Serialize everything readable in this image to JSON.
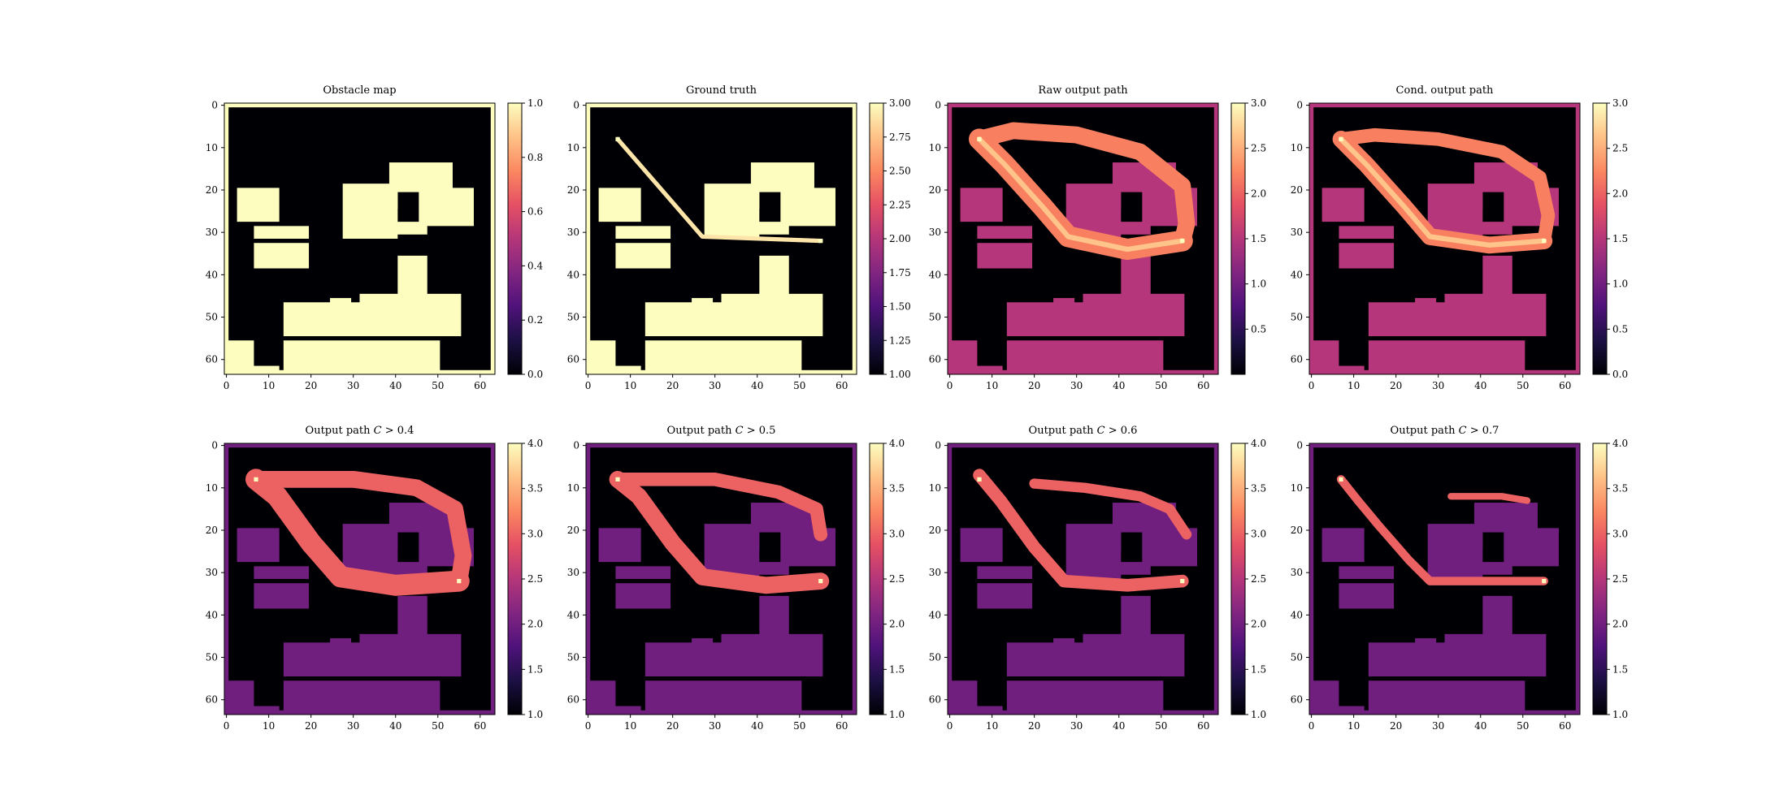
{
  "figure": {
    "colormap": "magma",
    "colors": {
      "background": "#ffffff",
      "obstacle_low": "#000004",
      "obstacle_high": "#fcfdbf",
      "box_level_3_of_3": "#b73779",
      "box_level_1p5_of_3": "#721f81",
      "path_highlight": "#f1605d",
      "path_peak": "#fec287"
    },
    "grid_size": 64,
    "shared_obstacle_layout_in_grid_cells": [
      {
        "x0": 3,
        "x1": 12,
        "y0": 20,
        "y1": 27
      },
      {
        "x0": 7,
        "x1": 19,
        "y0": 29,
        "y1": 31
      },
      {
        "x0": 7,
        "x1": 19,
        "y0": 33,
        "y1": 38
      },
      {
        "x0": 28,
        "x1": 40,
        "y0": 19,
        "y1": 31
      },
      {
        "x0": 39,
        "x1": 53,
        "y0": 14,
        "y1": 20
      },
      {
        "x0": 39,
        "x1": 40,
        "y0": 20,
        "y1": 24
      },
      {
        "x0": 46,
        "x1": 58,
        "y0": 20,
        "y1": 28
      },
      {
        "x0": 40,
        "x1": 47,
        "y0": 28,
        "y1": 30
      },
      {
        "x0": 41,
        "x1": 47,
        "y0": 36,
        "y1": 45
      },
      {
        "x0": 32,
        "x1": 55,
        "y0": 45,
        "y1": 54
      },
      {
        "x0": 14,
        "x1": 31,
        "y0": 47,
        "y1": 54
      },
      {
        "x0": 25,
        "x1": 29,
        "y0": 46,
        "y1": 47
      },
      {
        "x0": 0,
        "x1": 6,
        "y0": 56,
        "y1": 63
      },
      {
        "x0": 14,
        "x1": 31,
        "y0": 56,
        "y1": 63
      },
      {
        "x0": 32,
        "x1": 50,
        "y0": 56,
        "y1": 63
      },
      {
        "x0": 6,
        "x1": 12,
        "y0": 62,
        "y1": 63
      }
    ]
  },
  "chart_data": [
    {
      "type": "heatmap",
      "title": "Obstacle map",
      "xlim": [
        0,
        63
      ],
      "ylim": [
        0,
        63
      ],
      "xticks": [
        "0",
        "10",
        "20",
        "30",
        "40",
        "50",
        "60"
      ],
      "yticks": [
        "0",
        "10",
        "20",
        "30",
        "40",
        "50",
        "60"
      ],
      "colorbar": {
        "min": 0.0,
        "max": 1.0,
        "ticks": [
          "0.0",
          "0.2",
          "0.4",
          "0.6",
          "0.8",
          "1.0"
        ]
      },
      "obstacle_value": 1.0,
      "path": [],
      "start": null,
      "goal": null
    },
    {
      "type": "heatmap",
      "title": "Ground truth",
      "xlim": [
        0,
        63
      ],
      "ylim": [
        0,
        63
      ],
      "xticks": [
        "0",
        "10",
        "20",
        "30",
        "40",
        "50",
        "60"
      ],
      "yticks": [
        "0",
        "10",
        "20",
        "30",
        "40",
        "50",
        "60"
      ],
      "colorbar": {
        "min": 1.0,
        "max": 3.0,
        "ticks": [
          "1.00",
          "1.25",
          "1.50",
          "1.75",
          "2.00",
          "2.25",
          "2.50",
          "2.75",
          "3.00"
        ]
      },
      "obstacle_value": 3.0,
      "path": [
        [
          7,
          8
        ],
        [
          27,
          31
        ],
        [
          55,
          32
        ]
      ],
      "path_width": 1,
      "start": [
        7,
        8
      ],
      "goal": [
        55,
        32
      ]
    },
    {
      "type": "heatmap",
      "title": "Raw output path",
      "xlim": [
        0,
        63
      ],
      "ylim": [
        0,
        63
      ],
      "xticks": [
        "0",
        "10",
        "20",
        "30",
        "40",
        "50",
        "60"
      ],
      "yticks": [
        "0",
        "10",
        "20",
        "30",
        "40",
        "50",
        "60"
      ],
      "colorbar": {
        "min": 0.0,
        "max": 3.0,
        "ticks": [
          "0.5",
          "1.0",
          "1.5",
          "2.0",
          "2.5",
          "3.0"
        ]
      },
      "obstacle_value": 1.5,
      "path": [
        [
          7,
          8
        ],
        [
          13,
          14
        ],
        [
          22,
          24
        ],
        [
          28,
          31
        ],
        [
          42,
          34
        ],
        [
          55,
          32
        ]
      ],
      "upper_path": [
        [
          7,
          8
        ],
        [
          15,
          6
        ],
        [
          30,
          7
        ],
        [
          45,
          11
        ],
        [
          55,
          19
        ],
        [
          56,
          28
        ],
        [
          55,
          32
        ]
      ],
      "path_width": 5,
      "start": [
        7,
        8
      ],
      "goal": [
        55,
        32
      ]
    },
    {
      "type": "heatmap",
      "title": "Cond. output path",
      "xlim": [
        0,
        63
      ],
      "ylim": [
        0,
        63
      ],
      "xticks": [
        "0",
        "10",
        "20",
        "30",
        "40",
        "50",
        "60"
      ],
      "yticks": [
        "0",
        "10",
        "20",
        "30",
        "40",
        "50",
        "60"
      ],
      "colorbar": {
        "min": 0.0,
        "max": 3.0,
        "ticks": [
          "0.0",
          "0.5",
          "1.0",
          "1.5",
          "2.0",
          "2.5",
          "3.0"
        ]
      },
      "obstacle_value": 1.5,
      "path": [
        [
          7,
          8
        ],
        [
          13,
          14
        ],
        [
          22,
          24
        ],
        [
          28,
          31
        ],
        [
          42,
          33
        ],
        [
          55,
          32
        ]
      ],
      "upper_path": [
        [
          7,
          8
        ],
        [
          15,
          7
        ],
        [
          30,
          8
        ],
        [
          45,
          11
        ],
        [
          54,
          17
        ],
        [
          56,
          26
        ],
        [
          55,
          32
        ]
      ],
      "path_width": 4,
      "start": [
        7,
        8
      ],
      "goal": [
        55,
        32
      ]
    },
    {
      "type": "heatmap",
      "title": "Output path C > 0.4",
      "title_parts": [
        "Output path ",
        "C",
        " > 0.4"
      ],
      "xlim": [
        0,
        63
      ],
      "ylim": [
        0,
        63
      ],
      "xticks": [
        "0",
        "10",
        "20",
        "30",
        "40",
        "50",
        "60"
      ],
      "yticks": [
        "0",
        "10",
        "20",
        "30",
        "40",
        "50",
        "60"
      ],
      "colorbar": {
        "min": 1.0,
        "max": 4.0,
        "ticks": [
          "1.0",
          "1.5",
          "2.0",
          "2.5",
          "3.0",
          "3.5",
          "4.0"
        ]
      },
      "obstacle_value": 2.0,
      "path": [
        [
          7,
          8
        ],
        [
          12,
          12
        ],
        [
          20,
          23
        ],
        [
          27,
          31
        ],
        [
          40,
          33
        ],
        [
          55,
          32
        ]
      ],
      "upper_path": [
        [
          7,
          8
        ],
        [
          15,
          8
        ],
        [
          30,
          8
        ],
        [
          45,
          10
        ],
        [
          54,
          15
        ],
        [
          56,
          26
        ],
        [
          55,
          32
        ]
      ],
      "path_width": 5,
      "start": [
        7,
        8
      ],
      "goal": [
        55,
        32
      ]
    },
    {
      "type": "heatmap",
      "title": "Output path C > 0.5",
      "title_parts": [
        "Output path ",
        "C",
        " > 0.5"
      ],
      "xlim": [
        0,
        63
      ],
      "ylim": [
        0,
        63
      ],
      "xticks": [
        "0",
        "10",
        "20",
        "30",
        "40",
        "50",
        "60"
      ],
      "yticks": [
        "0",
        "10",
        "20",
        "30",
        "40",
        "50",
        "60"
      ],
      "colorbar": {
        "min": 1.0,
        "max": 4.0,
        "ticks": [
          "1.0",
          "1.5",
          "2.0",
          "2.5",
          "3.0",
          "3.5",
          "4.0"
        ]
      },
      "obstacle_value": 2.0,
      "path": [
        [
          7,
          8
        ],
        [
          12,
          12
        ],
        [
          20,
          23
        ],
        [
          27,
          31
        ],
        [
          42,
          33
        ],
        [
          55,
          32
        ]
      ],
      "upper_path": [
        [
          7,
          8
        ],
        [
          16,
          8
        ],
        [
          30,
          8
        ],
        [
          45,
          11
        ],
        [
          54,
          15
        ],
        [
          55,
          21
        ]
      ],
      "path_width": 4,
      "start": [
        7,
        8
      ],
      "goal": [
        55,
        32
      ]
    },
    {
      "type": "heatmap",
      "title": "Output path C > 0.6",
      "title_parts": [
        "Output path ",
        "C",
        " > 0.6"
      ],
      "xlim": [
        0,
        63
      ],
      "ylim": [
        0,
        63
      ],
      "xticks": [
        "0",
        "10",
        "20",
        "30",
        "40",
        "50",
        "60"
      ],
      "yticks": [
        "0",
        "10",
        "20",
        "30",
        "40",
        "50",
        "60"
      ],
      "colorbar": {
        "min": 1.0,
        "max": 4.0,
        "ticks": [
          "1.0",
          "1.5",
          "2.0",
          "2.5",
          "3.0",
          "3.5",
          "4.0"
        ]
      },
      "obstacle_value": 2.0,
      "path": [
        [
          7,
          7
        ],
        [
          12,
          13
        ],
        [
          20,
          24
        ],
        [
          27,
          32
        ],
        [
          42,
          33
        ],
        [
          55,
          32
        ]
      ],
      "upper_path": [
        [
          20,
          9
        ],
        [
          32,
          10
        ],
        [
          45,
          12
        ],
        [
          52,
          15
        ],
        [
          56,
          21
        ]
      ],
      "path_width": 3,
      "start": [
        7,
        8
      ],
      "goal": [
        55,
        32
      ]
    },
    {
      "type": "heatmap",
      "title": "Output path C > 0.7",
      "title_parts": [
        "Output path ",
        "C",
        " > 0.7"
      ],
      "xlim": [
        0,
        63
      ],
      "ylim": [
        0,
        63
      ],
      "xticks": [
        "0",
        "10",
        "20",
        "30",
        "40",
        "50",
        "60"
      ],
      "yticks": [
        "0",
        "10",
        "20",
        "30",
        "40",
        "50",
        "60"
      ],
      "colorbar": {
        "min": 1.0,
        "max": 4.0,
        "ticks": [
          "1.0",
          "1.5",
          "2.0",
          "2.5",
          "3.0",
          "3.5",
          "4.0"
        ]
      },
      "obstacle_value": 2.0,
      "path": [
        [
          7,
          8
        ],
        [
          11,
          13
        ],
        [
          16,
          19
        ],
        [
          23,
          27
        ],
        [
          28,
          32
        ],
        [
          42,
          32
        ],
        [
          55,
          32
        ]
      ],
      "upper_path": [
        [
          33,
          12
        ],
        [
          45,
          12
        ],
        [
          51,
          13
        ]
      ],
      "path_width": 2,
      "start": [
        7,
        8
      ],
      "goal": [
        55,
        32
      ]
    }
  ]
}
